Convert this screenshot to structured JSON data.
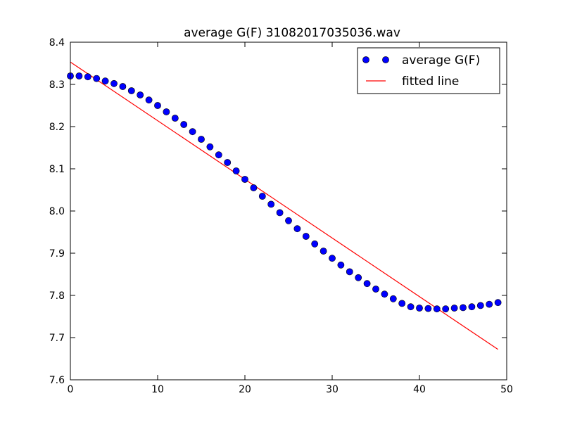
{
  "chart_data": {
    "type": "scatter",
    "title": "average G(F) 31082017035036.wav",
    "xlabel": "",
    "ylabel": "",
    "xlim": [
      0,
      50
    ],
    "ylim": [
      7.6,
      8.4
    ],
    "x_ticks": [
      "0",
      "10",
      "20",
      "30",
      "40",
      "50"
    ],
    "y_ticks": [
      "7.6",
      "7.7",
      "7.8",
      "7.9",
      "8.0",
      "8.1",
      "8.2",
      "8.3",
      "8.4"
    ],
    "grid": false,
    "legend_position": "top-right",
    "series": [
      {
        "name": "average G(F)",
        "kind": "markers",
        "color": "#0000ff",
        "x": [
          0,
          1,
          2,
          3,
          4,
          5,
          6,
          7,
          8,
          9,
          10,
          11,
          12,
          13,
          14,
          15,
          16,
          17,
          18,
          19,
          20,
          21,
          22,
          23,
          24,
          25,
          26,
          27,
          28,
          29,
          30,
          31,
          32,
          33,
          34,
          35,
          36,
          37,
          38,
          39,
          40,
          41,
          42,
          43,
          44,
          45,
          46,
          47,
          48,
          49
        ],
        "y": [
          8.32,
          8.32,
          8.318,
          8.314,
          8.308,
          8.302,
          8.295,
          8.285,
          8.275,
          8.263,
          8.25,
          8.235,
          8.22,
          8.205,
          8.188,
          8.17,
          8.152,
          8.133,
          8.115,
          8.095,
          8.075,
          8.055,
          8.035,
          8.016,
          7.996,
          7.977,
          7.958,
          7.94,
          7.922,
          7.905,
          7.888,
          7.872,
          7.856,
          7.842,
          7.828,
          7.815,
          7.803,
          7.792,
          7.781,
          7.773,
          7.77,
          7.769,
          7.768,
          7.768,
          7.77,
          7.771,
          7.773,
          7.776,
          7.779,
          7.783
        ]
      },
      {
        "name": "fitted line",
        "kind": "line",
        "color": "#ff0000",
        "x": [
          0,
          49
        ],
        "y": [
          8.353,
          7.672
        ]
      }
    ]
  }
}
